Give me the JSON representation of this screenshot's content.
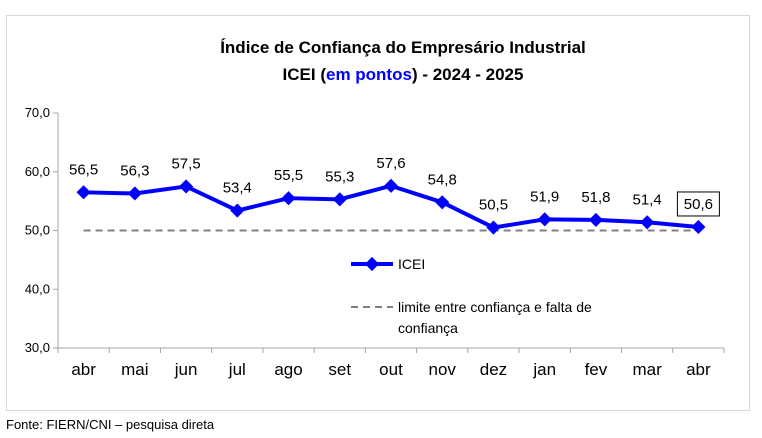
{
  "chart_data": {
    "type": "line",
    "title_line1": "Índice de Confiança do Empresário Industrial",
    "title_line2_pre": "ICEI (",
    "title_line2_accent": "em pontos",
    "title_line2_post": ") - 2024 - 2025",
    "categories": [
      "abr",
      "mai",
      "jun",
      "jul",
      "ago",
      "set",
      "out",
      "nov",
      "dez",
      "jan",
      "fev",
      "mar",
      "abr"
    ],
    "series": [
      {
        "name": "ICEI",
        "values": [
          56.5,
          56.3,
          57.5,
          53.4,
          55.5,
          55.3,
          57.6,
          54.8,
          50.5,
          51.9,
          51.8,
          51.4,
          50.6
        ],
        "labels": [
          "56,5",
          "56,3",
          "57,5",
          "53,4",
          "55,5",
          "55,3",
          "57,6",
          "54,8",
          "50,5",
          "51,9",
          "51,8",
          "51,4",
          "50,6"
        ],
        "color": "#0000ff"
      }
    ],
    "reference_line": {
      "name_line1": "limite entre confiança e falta de",
      "name_line2": "confiança",
      "value": 50,
      "color": "#808080"
    },
    "y_ticks": [
      "30,0",
      "40,0",
      "50,0",
      "60,0",
      "70,0"
    ],
    "y_tick_values": [
      30,
      40,
      50,
      60,
      70
    ],
    "ylim": [
      30,
      70
    ],
    "xlabel": "",
    "ylabel": "",
    "grid": false,
    "legend": "center",
    "highlighted_label_index": 12
  },
  "source": "Fonte: FIERN/CNI – pesquisa direta"
}
